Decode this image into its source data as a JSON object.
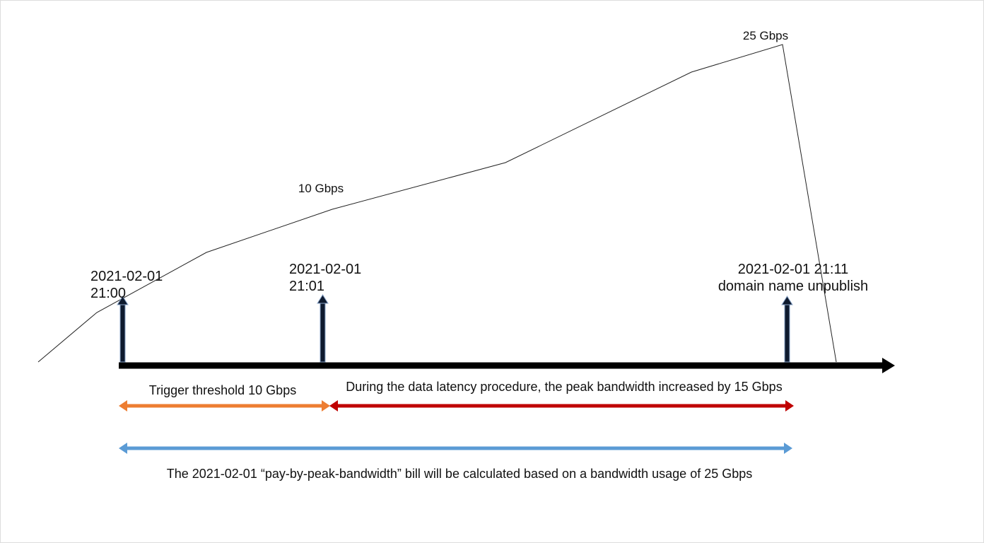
{
  "peak_labels": [
    "25 Gbps",
    "10 Gbps"
  ],
  "events": [
    {
      "lines": [
        "2021-02-01",
        "21:00"
      ]
    },
    {
      "lines": [
        "2021-02-01",
        "21:01"
      ]
    },
    {
      "lines": [
        "2021-02-01 21:11",
        "domain name unpublish"
      ]
    }
  ],
  "spans": [
    "Trigger threshold 10 Gbps",
    "During the data latency procedure, the peak bandwidth increased by 15 Gbps"
  ],
  "note": "The 2021-02-01 “pay-by-peak-bandwidth” bill will be calculated based on a bandwidth usage of 25 Gbps"
}
